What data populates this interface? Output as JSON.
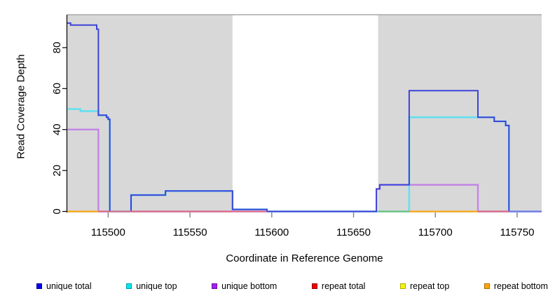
{
  "chart_data": {
    "type": "line",
    "title": "",
    "xlabel": "Coordinate in Reference Genome",
    "ylabel": "Read Coverage Depth",
    "xlim": [
      115475,
      115765
    ],
    "ylim": [
      0,
      96
    ],
    "x_ticks": [
      115500,
      115550,
      115600,
      115650,
      115700,
      115750
    ],
    "y_ticks": [
      0,
      20,
      40,
      60,
      80
    ],
    "grid": false,
    "legend_position": "bottom",
    "colors": {
      "plot_background": "#FFFFFF",
      "shaded_band": "#D8D8D8",
      "top_border": "#A8A8A8",
      "axis": "#000000",
      "x_tick": "#808080"
    },
    "shaded_regions": [
      [
        115475,
        115576
      ],
      [
        115665,
        115765
      ]
    ],
    "series": [
      {
        "name": "unique total",
        "color": "#0000EE",
        "line_color": "#3D44D8",
        "line_width": 2,
        "steps": [
          [
            115475,
            92
          ],
          [
            115477,
            91
          ],
          [
            115493,
            89
          ],
          [
            115494,
            47
          ],
          [
            115499,
            46
          ],
          [
            115500,
            45
          ],
          [
            115501,
            0
          ],
          [
            115514,
            8
          ],
          [
            115535,
            10
          ],
          [
            115576,
            1
          ],
          [
            115597,
            0
          ],
          [
            115664,
            11
          ],
          [
            115666,
            13
          ],
          [
            115684,
            59
          ],
          [
            115726,
            46
          ],
          [
            115736,
            44
          ],
          [
            115743,
            42
          ],
          [
            115745,
            0
          ]
        ]
      },
      {
        "name": "unique top",
        "color": "#00E5EE",
        "line_color": "#63DFF0",
        "line_width": 2.6,
        "steps": [
          [
            115475,
            50
          ],
          [
            115483,
            49
          ],
          [
            115494,
            47
          ],
          [
            115499,
            46
          ],
          [
            115500,
            45
          ],
          [
            115501,
            0
          ],
          [
            115514,
            8
          ],
          [
            115535,
            10
          ],
          [
            115576,
            1
          ],
          [
            115597,
            0
          ],
          [
            115684,
            46
          ],
          [
            115736,
            44
          ],
          [
            115743,
            42
          ],
          [
            115745,
            0
          ]
        ]
      },
      {
        "name": "unique bottom",
        "color": "#A020F0",
        "line_color": "#C285E6",
        "line_width": 2.4,
        "steps": [
          [
            115475,
            40
          ],
          [
            115494,
            0
          ],
          [
            115664,
            11
          ],
          [
            115666,
            13
          ],
          [
            115726,
            0
          ]
        ]
      },
      {
        "name": "repeat total",
        "color": "#EE0000",
        "line_color": "#E0697F",
        "line_width": 1.8,
        "steps": [
          [
            115475,
            0
          ]
        ]
      },
      {
        "name": "repeat top",
        "color": "#F5F500",
        "line_color": "#F5F500",
        "line_width": 1.8,
        "steps": [
          [
            115475,
            0
          ]
        ]
      },
      {
        "name": "repeat bottom",
        "color": "#FFA500",
        "line_color": "#FFA500",
        "line_width": 1.8,
        "steps": [
          [
            115475,
            0
          ]
        ]
      }
    ],
    "baseline_segments": [
      {
        "from": 115475,
        "to": 115494,
        "color": "#FFA500"
      },
      {
        "from": 115494,
        "to": 115597,
        "color": "#E0697F"
      },
      {
        "from": 115665,
        "to": 115684,
        "color": "#6FBF73"
      },
      {
        "from": 115684,
        "to": 115726,
        "color": "#FFA500"
      },
      {
        "from": 115726,
        "to": 115745,
        "color": "#E0697F"
      },
      {
        "from": 115745,
        "to": 115765,
        "color": "#7B74E8"
      }
    ],
    "legend": [
      {
        "label": "unique total",
        "color": "#0000EE",
        "border": "#0000A0"
      },
      {
        "label": "unique top",
        "color": "#00E5EE",
        "border": "#009DAD"
      },
      {
        "label": "unique bottom",
        "color": "#A020F0",
        "border": "#6E10A8"
      },
      {
        "label": "repeat total",
        "color": "#EE0000",
        "border": "#9E0000"
      },
      {
        "label": "repeat top",
        "color": "#F5F500",
        "border": "#ADAD00"
      },
      {
        "label": "repeat bottom",
        "color": "#FFA500",
        "border": "#AD7000"
      }
    ]
  }
}
